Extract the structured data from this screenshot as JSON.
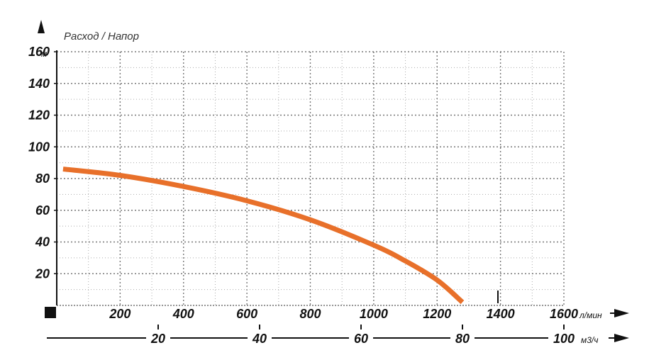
{
  "chart_data": {
    "type": "line",
    "title": "Расход / Напор",
    "y_unit": "м",
    "x_unit": "л/мин",
    "x2_unit": "м3/ч",
    "ylim": [
      0,
      160
    ],
    "xlim": [
      0,
      1600
    ],
    "x2lim": [
      0,
      100
    ],
    "y_ticks": [
      "160",
      "140",
      "120",
      "100",
      "80",
      "60",
      "40",
      "20"
    ],
    "x_ticks": [
      "200",
      "400",
      "600",
      "800",
      "1000",
      "1200",
      "1400",
      "1600"
    ],
    "x2_ticks": [
      "20",
      "40",
      "60",
      "80",
      "100"
    ],
    "grid": true,
    "series": [
      {
        "color": "#e8702a",
        "x": [
          20,
          200,
          400,
          600,
          800,
          1000,
          1100,
          1200,
          1280
        ],
        "y": [
          86,
          82,
          75,
          66,
          54,
          38,
          28,
          16,
          2
        ]
      }
    ]
  }
}
